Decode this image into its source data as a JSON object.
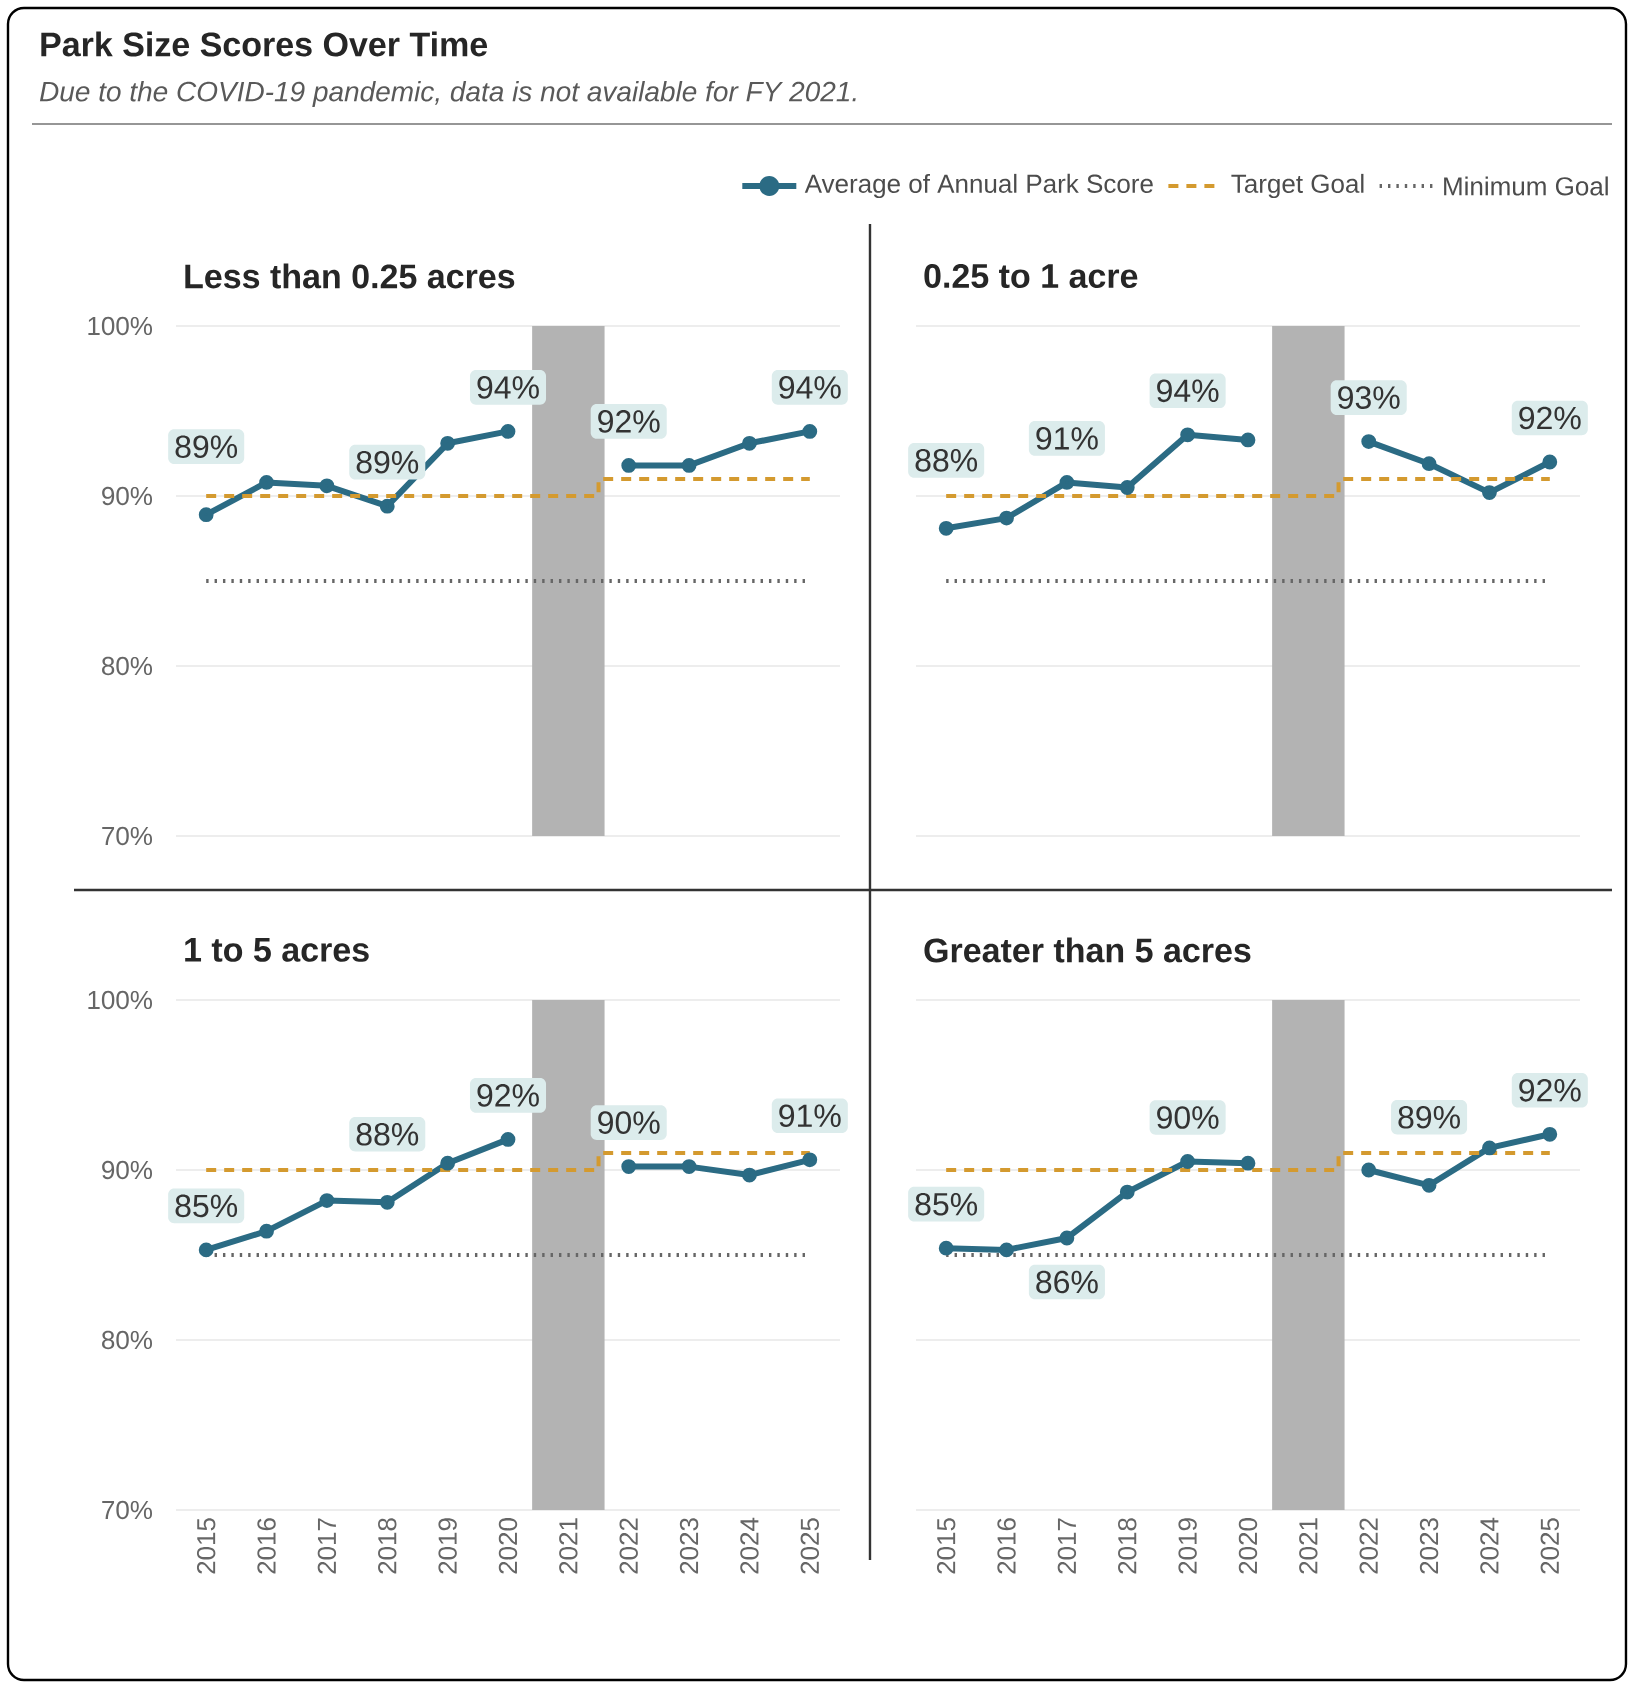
{
  "chart_data": [
    {
      "type": "line",
      "title": "Less than 0.25 acres",
      "annotations": [
        "Park Size Scores Over Time",
        "Due to the COVID-19 pandemic, data is not available for FY 2021."
      ],
      "x": [
        2015,
        2016,
        2017,
        2018,
        2019,
        2020,
        2021,
        2022,
        2023,
        2024,
        2025
      ],
      "xlim": [
        2014.5,
        2025.5
      ],
      "xticks": [
        2015,
        2016,
        2017,
        2018,
        2019,
        2020,
        2021,
        2022,
        2023,
        2024,
        2025
      ],
      "ylim": [
        70,
        100
      ],
      "yticks": [
        {
          "value": 70,
          "label": "70%"
        },
        {
          "value": 80,
          "label": "80%"
        },
        {
          "value": 90,
          "label": "90%"
        },
        {
          "value": 100,
          "label": "100%"
        }
      ],
      "grid": "y",
      "legend": "top right",
      "tick_labels": "y",
      "bands": [
        {
          "axis": "x",
          "from": 2020.4,
          "to": 2021.6,
          "color": "#b3b3b3"
        }
      ],
      "series": [
        {
          "name": "Average of Annual Park Score",
          "color": "#2b6b84",
          "marker": "circle",
          "values": [
            88.9,
            90.8,
            90.6,
            89.4,
            93.1,
            93.8,
            null,
            91.8,
            91.8,
            93.1,
            93.8
          ],
          "value_labels": [
            "89%",
            null,
            null,
            "89%",
            null,
            "94%",
            null,
            "92%",
            null,
            null,
            "94%"
          ]
        },
        {
          "name": "Target Goal",
          "type": "step",
          "color": "#d49a2f",
          "marker": "none",
          "line_style": "dashed",
          "values": [
            90,
            90,
            90,
            90,
            90,
            90,
            90,
            91,
            91,
            91,
            91
          ]
        },
        {
          "name": "Minimum Goal",
          "color": "#666666",
          "marker": "none",
          "line_style": "dotted",
          "values": [
            85,
            85,
            85,
            85,
            85,
            85,
            85,
            85,
            85,
            85,
            85
          ]
        }
      ]
    },
    {
      "type": "line",
      "title": "0.25 to 1 acre",
      "x": [
        2015,
        2016,
        2017,
        2018,
        2019,
        2020,
        2021,
        2022,
        2023,
        2024,
        2025
      ],
      "xlim": [
        2014.5,
        2025.5
      ],
      "xticks": [
        2015,
        2016,
        2017,
        2018,
        2019,
        2020,
        2021,
        2022,
        2023,
        2024,
        2025
      ],
      "ylim": [
        70,
        100
      ],
      "yticks": [
        70,
        80,
        90,
        100
      ],
      "grid": "y",
      "tick_labels": false,
      "bands": [
        {
          "axis": "x",
          "from": 2020.4,
          "to": 2021.6,
          "color": "#b3b3b3"
        }
      ],
      "series": [
        {
          "color": "#2b6b84",
          "marker": "circle",
          "values": [
            88.1,
            88.7,
            90.8,
            90.5,
            93.6,
            93.3,
            null,
            93.2,
            91.9,
            90.2,
            92.0
          ],
          "value_labels": [
            "88%",
            null,
            "91%",
            null,
            "94%",
            null,
            null,
            "93%",
            null,
            null,
            "92%"
          ]
        },
        {
          "type": "step",
          "color": "#d49a2f",
          "marker": "none",
          "line_style": "dashed",
          "values": [
            90,
            90,
            90,
            90,
            90,
            90,
            90,
            91,
            91,
            91,
            91
          ]
        },
        {
          "color": "#666666",
          "marker": "none",
          "line_style": "dotted",
          "values": [
            85,
            85,
            85,
            85,
            85,
            85,
            85,
            85,
            85,
            85,
            85
          ]
        }
      ]
    },
    {
      "type": "line",
      "title": "1 to 5 acres",
      "x": [
        2015,
        2016,
        2017,
        2018,
        2019,
        2020,
        2021,
        2022,
        2023,
        2024,
        2025
      ],
      "xlim": [
        2014.5,
        2025.5
      ],
      "xticks": [
        2015,
        2016,
        2017,
        2018,
        2019,
        2020,
        2021,
        2022,
        2023,
        2024,
        2025
      ],
      "ylim": [
        70,
        100
      ],
      "yticks": [
        {
          "value": 70,
          "label": "70%"
        },
        {
          "value": 80,
          "label": "80%"
        },
        {
          "value": 90,
          "label": "90%"
        },
        {
          "value": 100,
          "label": "100%"
        }
      ],
      "grid": "y",
      "bands": [
        {
          "axis": "x",
          "from": 2020.4,
          "to": 2021.6,
          "color": "#b3b3b3"
        }
      ],
      "series": [
        {
          "color": "#2b6b84",
          "marker": "circle",
          "values": [
            85.3,
            86.4,
            88.2,
            88.1,
            90.4,
            91.8,
            null,
            90.2,
            90.2,
            89.7,
            90.6
          ],
          "value_labels": [
            "85%",
            null,
            null,
            "88%",
            null,
            "92%",
            null,
            "90%",
            null,
            null,
            "91%"
          ]
        },
        {
          "type": "step",
          "color": "#d49a2f",
          "marker": "none",
          "line_style": "dashed",
          "values": [
            90,
            90,
            90,
            90,
            90,
            90,
            90,
            91,
            91,
            91,
            91
          ]
        },
        {
          "color": "#666666",
          "marker": "none",
          "line_style": "dotted",
          "values": [
            85,
            85,
            85,
            85,
            85,
            85,
            85,
            85,
            85,
            85,
            85
          ]
        }
      ]
    },
    {
      "type": "line",
      "title": "Greater than 5 acres",
      "x": [
        2015,
        2016,
        2017,
        2018,
        2019,
        2020,
        2021,
        2022,
        2023,
        2024,
        2025
      ],
      "xlim": [
        2014.5,
        2025.5
      ],
      "xticks": [
        2015,
        2016,
        2017,
        2018,
        2019,
        2020,
        2021,
        2022,
        2023,
        2024,
        2025
      ],
      "ylim": [
        70,
        100
      ],
      "yticks": [
        70,
        80,
        90,
        100
      ],
      "grid": "y",
      "tick_labels": "x",
      "bands": [
        {
          "axis": "x",
          "from": 2020.4,
          "to": 2021.6,
          "color": "#b3b3b3"
        }
      ],
      "series": [
        {
          "color": "#2b6b84",
          "marker": "circle",
          "values": [
            85.4,
            85.3,
            86.0,
            88.7,
            90.5,
            90.4,
            null,
            90.0,
            89.1,
            91.3,
            92.1
          ],
          "value_labels": [
            "85%",
            null,
            "86%",
            null,
            "90%",
            null,
            null,
            null,
            "89%",
            null,
            "92%"
          ]
        },
        {
          "type": "step",
          "color": "#d49a2f",
          "marker": "none",
          "line_style": "dashed",
          "values": [
            90,
            90,
            90,
            90,
            90,
            90,
            90,
            91,
            91,
            91,
            91
          ]
        },
        {
          "color": "#666666",
          "marker": "none",
          "line_style": "dotted",
          "values": [
            85,
            85,
            85,
            85,
            85,
            85,
            85,
            85,
            85,
            85,
            85
          ]
        }
      ]
    }
  ]
}
